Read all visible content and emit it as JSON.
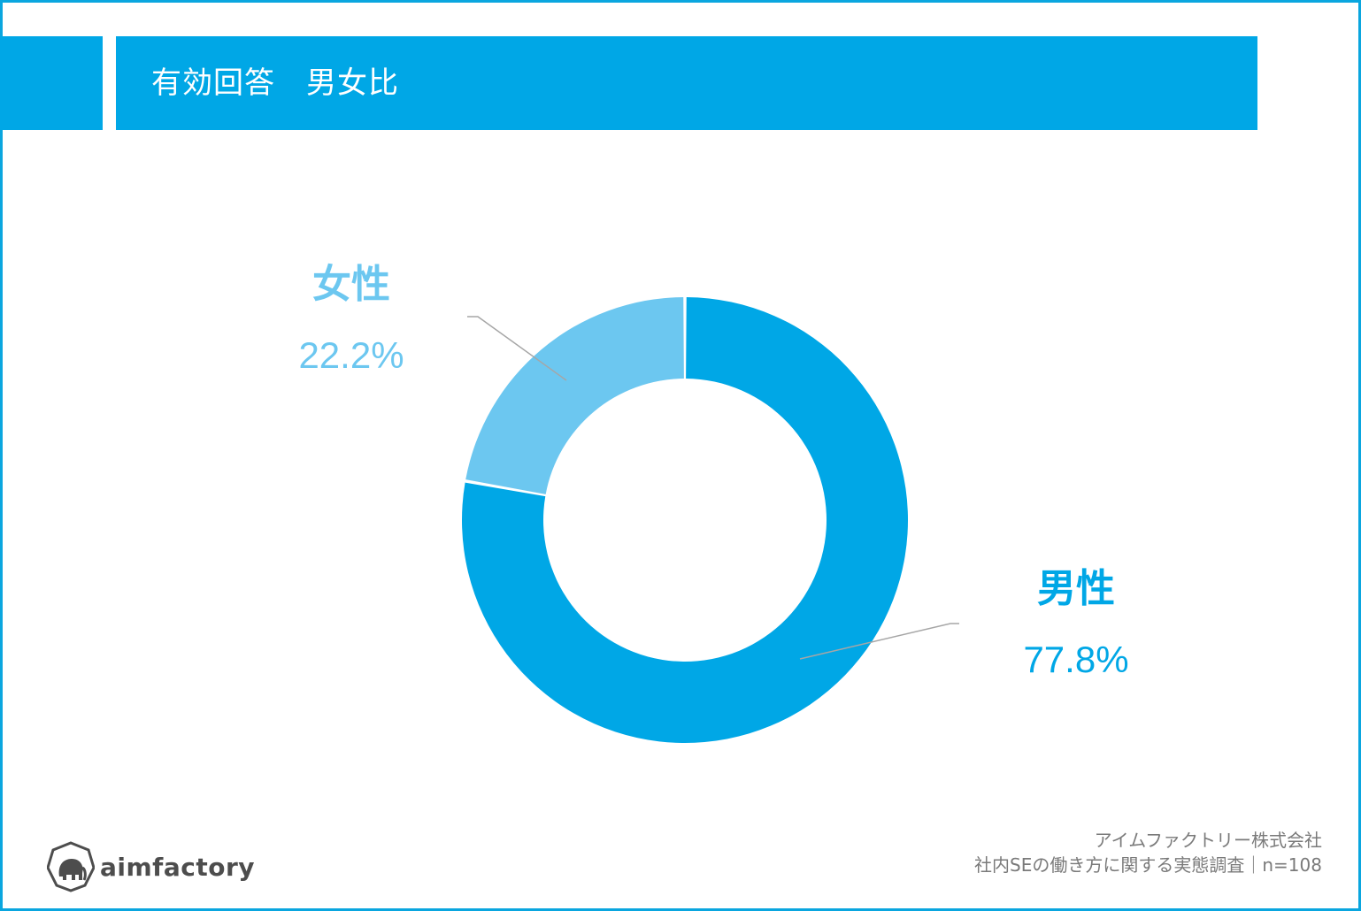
{
  "header": {
    "title": "有効回答　男女比"
  },
  "chart_data": {
    "type": "pie",
    "donut": true,
    "title": "有効回答　男女比",
    "start_angle_deg": 0,
    "direction": "clockwise",
    "slices": [
      {
        "label": "男性",
        "value": 77.8,
        "value_label": "77.8%",
        "color": "#00a7e6"
      },
      {
        "label": "女性",
        "value": 22.2,
        "value_label": "22.2%",
        "color": "#6cc7f0"
      }
    ]
  },
  "footer": {
    "company": "アイムファクトリー株式会社",
    "survey": "社内SEの働き方に関する実態調査｜n=108"
  },
  "logo": {
    "text": "aimfactory",
    "icon": "elephant-icon"
  },
  "colors": {
    "accent": "#00a7e6",
    "frame": "#0aa6df",
    "leader_line": "#a6a6a6"
  }
}
